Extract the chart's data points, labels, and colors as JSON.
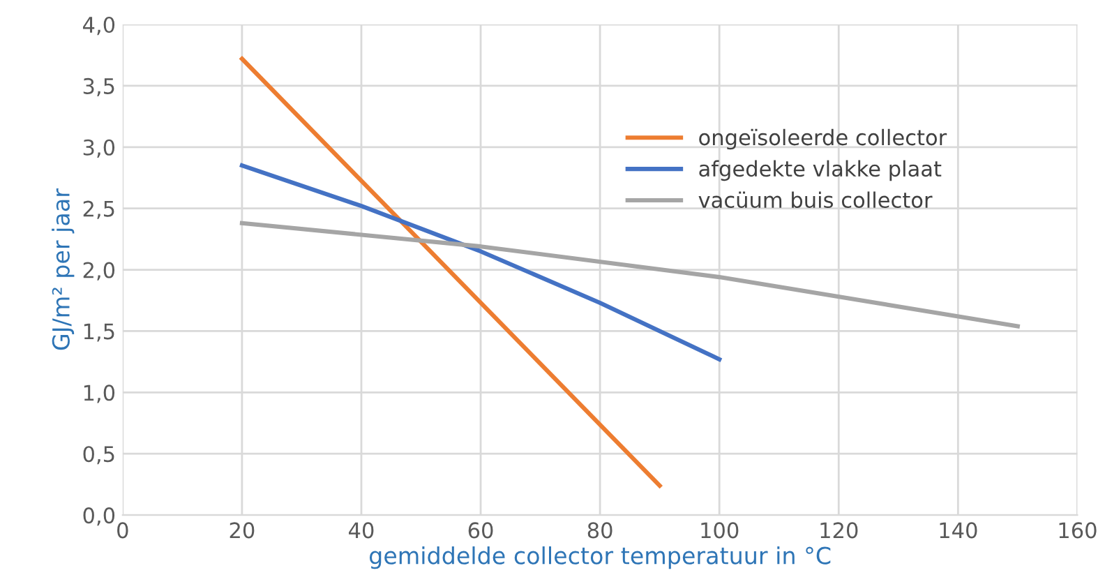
{
  "chart_data": {
    "type": "line",
    "xlabel": "gemiddelde collector temperatuur in °C",
    "ylabel": "GJ/m² per jaar",
    "xlim": [
      0,
      160
    ],
    "xticks": [
      0,
      20,
      40,
      60,
      80,
      100,
      120,
      140,
      160
    ],
    "ylim": [
      0,
      4
    ],
    "yticks": [
      {
        "value": 0,
        "label": "0,0"
      },
      {
        "value": 0.5,
        "label": "0,5"
      },
      {
        "value": 1,
        "label": "1,0"
      },
      {
        "value": 1.5,
        "label": "1,5"
      },
      {
        "value": 2,
        "label": "2,0"
      },
      {
        "value": 2.5,
        "label": "2,5"
      },
      {
        "value": 3,
        "label": "3,0"
      },
      {
        "value": 3.5,
        "label": "3,5"
      },
      {
        "value": 4,
        "label": "4,0"
      }
    ],
    "grid": true,
    "legend": "top right",
    "marker": "none",
    "line_style": "solid",
    "series": [
      {
        "name": "ongeïsoleerde collector",
        "color": "#ed7d31",
        "x": [
          20,
          90
        ],
        "values": [
          3.72,
          0.24
        ]
      },
      {
        "name": "afgedekte vlakke plaat",
        "color": "#4472c4",
        "x": [
          20,
          40,
          60,
          80,
          100
        ],
        "values": [
          2.85,
          2.52,
          2.15,
          1.73,
          1.27
        ]
      },
      {
        "name": "vacüum buis collector",
        "color": "#a5a5a5",
        "x": [
          20,
          60,
          100,
          150
        ],
        "values": [
          2.38,
          2.19,
          1.94,
          1.54
        ]
      }
    ]
  }
}
